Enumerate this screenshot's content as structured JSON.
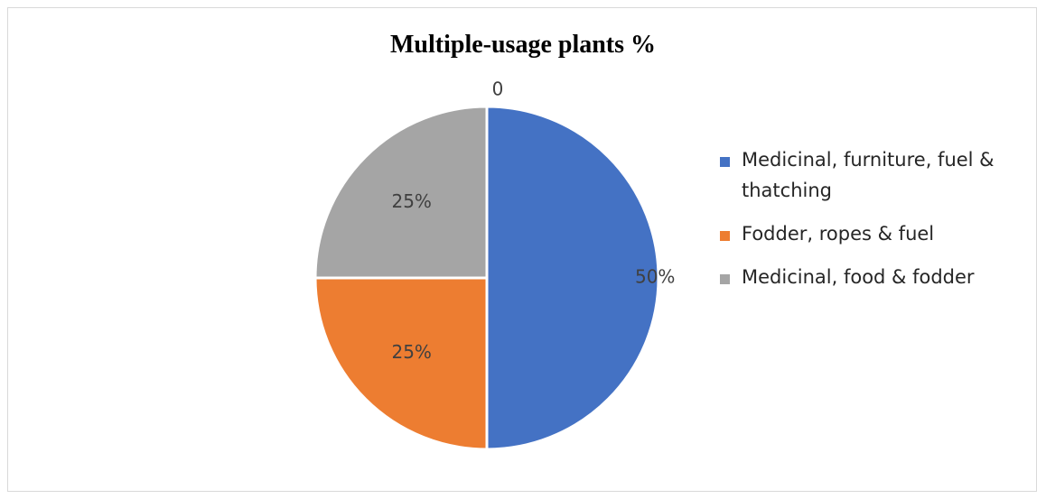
{
  "chart_data": {
    "type": "pie",
    "title": "Multiple-usage plants %",
    "categories": [
      "Medicinal, furniture, fuel & thatching",
      "Fodder, ropes & fuel",
      "Medicinal, food & fodder"
    ],
    "values": [
      50,
      25,
      25
    ],
    "data_labels": [
      "50%",
      "25%",
      "25%"
    ],
    "stray_label": "0",
    "colors": [
      "#4472C4",
      "#ED7D31",
      "#A5A5A5"
    ],
    "legend_position": "right",
    "start_angle": "12 o'clock",
    "direction": "clockwise"
  }
}
